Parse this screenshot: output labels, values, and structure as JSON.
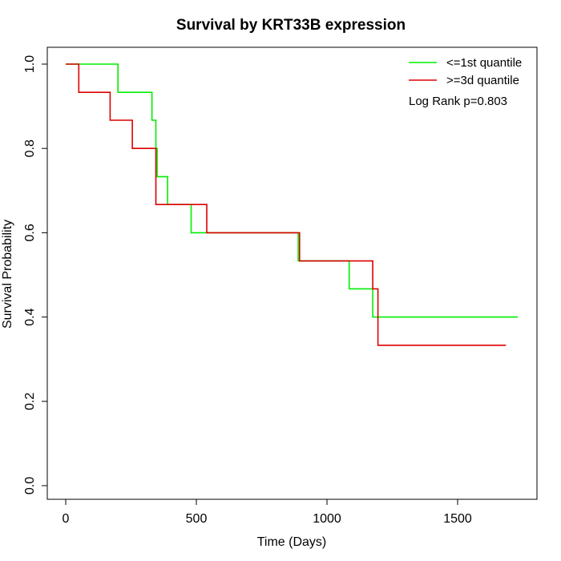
{
  "chart_data": {
    "type": "line",
    "title": "Survival by KRT33B expression",
    "xlabel": "Time (Days)",
    "ylabel": "Survival Probability",
    "xlim": [
      0,
      1730
    ],
    "ylim": [
      0,
      1
    ],
    "x_ticks": [
      0,
      500,
      1000,
      1500
    ],
    "x_tick_labels": [
      "0",
      "500",
      "1000",
      "1500"
    ],
    "y_ticks": [
      0,
      0.2,
      0.4,
      0.6,
      0.8,
      1.0
    ],
    "y_tick_labels": [
      "0.0",
      "0.2",
      "0.4",
      "0.6",
      "0.8",
      "1.0"
    ],
    "grid": false,
    "legend_position": "top-right",
    "annotation": "Log Rank p=0.803",
    "series": [
      {
        "name": "<=1st quantile",
        "color": "#00ee00",
        "step_points": [
          [
            0,
            1.0
          ],
          [
            200,
            0.933
          ],
          [
            330,
            0.867
          ],
          [
            345,
            0.8
          ],
          [
            350,
            0.733
          ],
          [
            390,
            0.667
          ],
          [
            480,
            0.6
          ],
          [
            890,
            0.533
          ],
          [
            1085,
            0.467
          ],
          [
            1175,
            0.4
          ],
          [
            1730,
            0.4
          ]
        ]
      },
      {
        "name": ">=3d quantile",
        "color": "#dd0000",
        "step_points": [
          [
            0,
            1.0
          ],
          [
            50,
            0.933
          ],
          [
            170,
            0.867
          ],
          [
            255,
            0.8
          ],
          [
            345,
            0.667
          ],
          [
            540,
            0.6
          ],
          [
            895,
            0.533
          ],
          [
            1175,
            0.467
          ],
          [
            1195,
            0.333
          ],
          [
            1685,
            0.333
          ]
        ]
      }
    ]
  }
}
